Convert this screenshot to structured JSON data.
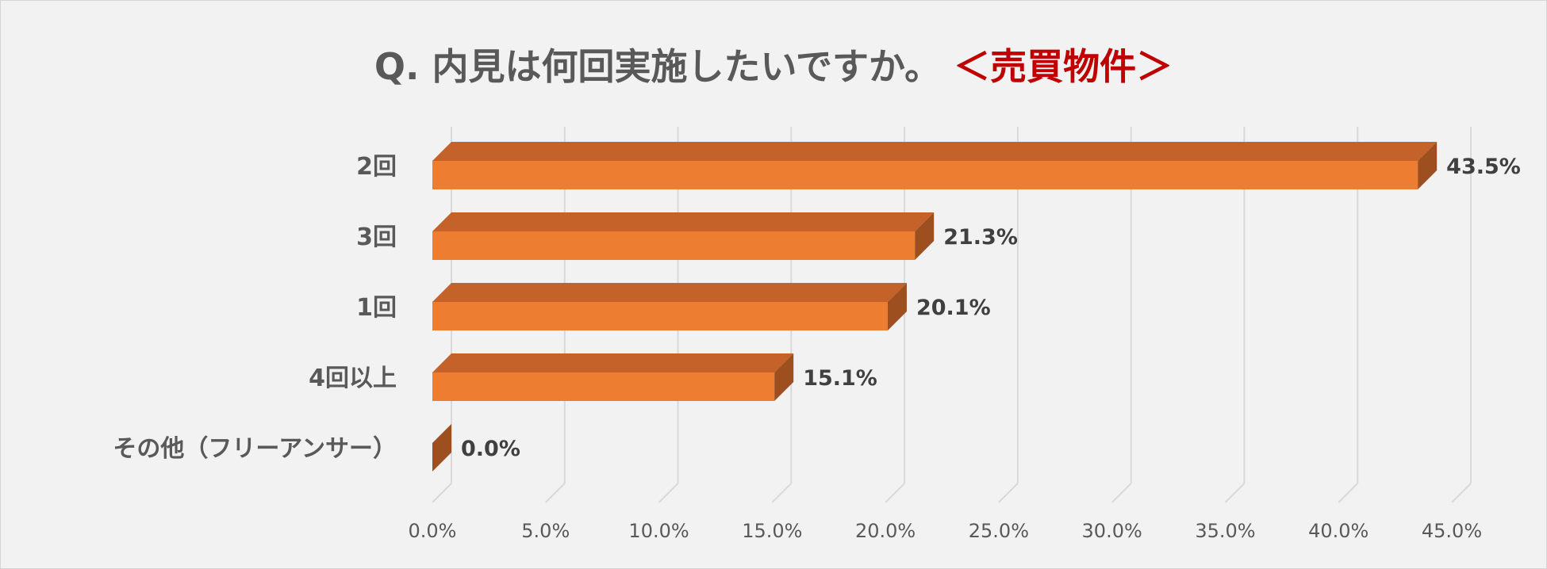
{
  "title": {
    "question": "Q. 内見は何回実施したいですか。",
    "tag": "＜売買物件＞"
  },
  "chart_data": {
    "type": "bar",
    "orientation": "horizontal",
    "style": "3d",
    "categories": [
      "2回",
      "3回",
      "1回",
      "4回以上",
      "その他（フリーアンサー）"
    ],
    "values": [
      43.5,
      21.3,
      20.1,
      15.1,
      0.0
    ],
    "data_labels": [
      "43.5%",
      "21.3%",
      "20.1%",
      "15.1%",
      "0.0%"
    ],
    "x_ticks": [
      "0.0%",
      "5.0%",
      "10.0%",
      "15.0%",
      "20.0%",
      "25.0%",
      "30.0%",
      "35.0%",
      "40.0%",
      "45.0%"
    ],
    "xlim": [
      0,
      45
    ],
    "grid": true,
    "legend": "none",
    "colors": {
      "bar_front": "#ed7d31",
      "bar_top": "#c4622a",
      "bar_side": "#9e4f20",
      "grid": "#d9d9d9",
      "title_tag": "#c00000"
    }
  }
}
